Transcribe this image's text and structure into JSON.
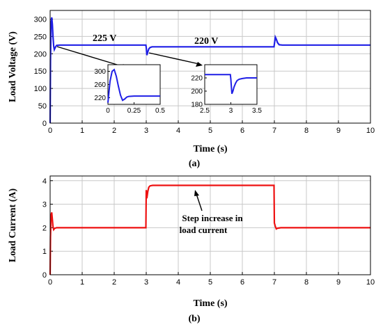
{
  "chart_data": [
    {
      "type": "line",
      "title": "",
      "xlabel": "Time (s)",
      "ylabel": "Load Voltage (V)",
      "panel_label": "(a)",
      "xlim": [
        0,
        10
      ],
      "ylim": [
        0,
        325
      ],
      "xticks": [
        0,
        1,
        2,
        3,
        4,
        5,
        6,
        7,
        8,
        9,
        10
      ],
      "yticks": [
        0,
        50,
        100,
        150,
        200,
        250,
        300
      ],
      "grid": true,
      "color": "#1f1fe6",
      "series": [
        {
          "x": [
            0,
            0.01,
            0.03,
            0.05,
            0.07,
            0.09,
            0.11,
            0.13,
            0.16,
            0.2,
            0.3,
            2.99,
            3.0,
            3.02,
            3.05,
            3.08,
            3.12,
            3.18,
            3.25,
            3.4,
            6.99,
            7.0,
            7.03,
            7.06,
            7.1,
            7.15,
            7.25,
            7.5,
            10
          ],
          "y": [
            0,
            180,
            290,
            305,
            285,
            250,
            222,
            212,
            218,
            224,
            225,
            225,
            218,
            196,
            206,
            214,
            218,
            220,
            220,
            220,
            220,
            228,
            248,
            242,
            232,
            226,
            225,
            225,
            225
          ]
        }
      ],
      "annotations": [
        "225 V",
        "220 V"
      ],
      "insets": [
        {
          "xlim": [
            0,
            0.5
          ],
          "ylim": [
            200,
            320
          ],
          "xticks": [
            "0",
            "0.25",
            "0.5"
          ],
          "yticks": [
            "220",
            "260",
            "300"
          ],
          "x": [
            0,
            0.02,
            0.04,
            0.06,
            0.08,
            0.1,
            0.12,
            0.14,
            0.16,
            0.18,
            0.2,
            0.25,
            0.3,
            0.5
          ],
          "y": [
            205,
            270,
            300,
            305,
            285,
            255,
            228,
            212,
            216,
            222,
            224,
            225,
            225,
            225
          ]
        },
        {
          "xlim": [
            2.5,
            3.5
          ],
          "ylim": [
            180,
            240
          ],
          "xticks": [
            "2.5",
            "3",
            "3.5"
          ],
          "yticks": [
            "180",
            "200",
            "220"
          ],
          "x": [
            2.5,
            2.99,
            3.0,
            3.02,
            3.04,
            3.06,
            3.09,
            3.12,
            3.16,
            3.22,
            3.3,
            3.5
          ],
          "y": [
            225,
            225,
            218,
            196,
            200,
            206,
            212,
            216,
            218,
            219,
            220,
            220
          ]
        }
      ]
    },
    {
      "type": "line",
      "title": "",
      "xlabel": "Time (s)",
      "ylabel": "Load Current (A)",
      "panel_label": "(b)",
      "xlim": [
        0,
        10
      ],
      "ylim": [
        0,
        4.2
      ],
      "xticks": [
        0,
        1,
        2,
        3,
        4,
        5,
        6,
        7,
        8,
        9,
        10
      ],
      "yticks": [
        0,
        1,
        2,
        3,
        4
      ],
      "grid": true,
      "color": "#ee1111",
      "series": [
        {
          "x": [
            0,
            0.01,
            0.03,
            0.05,
            0.07,
            0.09,
            0.11,
            0.14,
            0.2,
            0.4,
            2.99,
            3.0,
            3.02,
            3.05,
            3.08,
            3.12,
            3.2,
            3.5,
            6.99,
            7.0,
            7.03,
            7.06,
            7.1,
            7.2,
            7.5,
            10
          ],
          "y": [
            0,
            1.6,
            2.55,
            2.65,
            2.35,
            2.05,
            1.92,
            1.97,
            2.0,
            2.0,
            2.0,
            3.6,
            3.25,
            3.55,
            3.72,
            3.78,
            3.8,
            3.8,
            3.8,
            2.2,
            2.05,
            1.95,
            1.98,
            2.0,
            2.0,
            2.0
          ]
        }
      ],
      "annotations": [
        "Step increase in",
        "load current"
      ]
    }
  ]
}
